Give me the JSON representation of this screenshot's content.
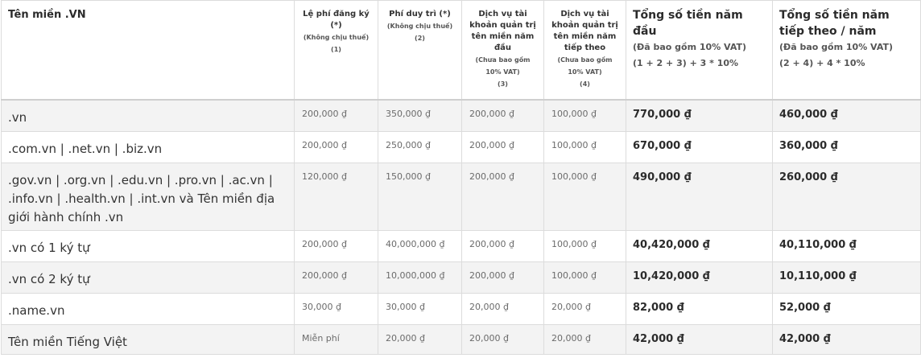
{
  "header": {
    "col_domain": "Tên miền .VN",
    "col_reg_fee": {
      "main": "Lệ phí đăng ký (*)",
      "sub1": "(Không chịu thuế)",
      "sub2": "(1)"
    },
    "col_maint_fee": {
      "main": "Phí duy trì (*)",
      "sub1": "(Không chịu thuế)",
      "sub2": "(2)"
    },
    "col_admin_first": {
      "main": "Dịch vụ tài khoản quản trị tên miền năm đầu",
      "sub1": "(Chưa bao gồm 10% VAT)",
      "sub2": "(3)"
    },
    "col_admin_next": {
      "main": "Dịch vụ tài khoản quản trị tên miền năm tiếp theo",
      "sub1": "(Chưa bao gồm 10% VAT)",
      "sub2": "(4)"
    },
    "col_total_first": {
      "main": "Tổng số tiền năm đầu",
      "sub1": "(Đã bao gồm 10% VAT)",
      "sub2": "(1 + 2 + 3) + 3 * 10%"
    },
    "col_total_next": {
      "main": "Tổng số tiền năm tiếp theo / năm",
      "sub1": "(Đã bao gồm 10% VAT)",
      "sub2": "(2 + 4) + 4 * 10%"
    }
  },
  "rows": [
    {
      "name": ".vn",
      "reg": "200,000 ₫",
      "maint": "350,000 ₫",
      "admin_first": "200,000 ₫",
      "admin_next": "100,000 ₫",
      "total_first": "770,000 ₫",
      "total_next": "460,000 ₫"
    },
    {
      "name": ".com.vn | .net.vn | .biz.vn",
      "reg": "200,000 ₫",
      "maint": "250,000 ₫",
      "admin_first": "200,000 ₫",
      "admin_next": "100,000 ₫",
      "total_first": "670,000 ₫",
      "total_next": "360,000 ₫"
    },
    {
      "name": ".gov.vn | .org.vn | .edu.vn | .pro.vn | .ac.vn | .info.vn | .health.vn | .int.vn và Tên miền địa giới hành chính .vn",
      "reg": "120,000 ₫",
      "maint": "150,000 ₫",
      "admin_first": "200,000 ₫",
      "admin_next": "100,000 ₫",
      "total_first": "490,000 ₫",
      "total_next": "260,000 ₫"
    },
    {
      "name": ".vn có 1 ký tự",
      "reg": "200,000 ₫",
      "maint": "40,000,000 ₫",
      "admin_first": "200,000 ₫",
      "admin_next": "100,000 ₫",
      "total_first": "40,420,000 ₫",
      "total_next": "40,110,000 ₫"
    },
    {
      "name": ".vn có 2 ký tự",
      "reg": "200,000 ₫",
      "maint": "10,000,000 ₫",
      "admin_first": "200,000 ₫",
      "admin_next": "100,000 ₫",
      "total_first": "10,420,000 ₫",
      "total_next": "10,110,000 ₫"
    },
    {
      "name": ".name.vn",
      "reg": "30,000 ₫",
      "maint": "30,000 ₫",
      "admin_first": "20,000 ₫",
      "admin_next": "20,000 ₫",
      "total_first": "82,000 ₫",
      "total_next": "52,000 ₫"
    },
    {
      "name": "Tên miền Tiếng Việt",
      "reg": "Miễn phí",
      "maint": "20,000 ₫",
      "admin_first": "20,000 ₫",
      "admin_next": "20,000 ₫",
      "total_first": "42,000 ₫",
      "total_next": "42,000 ₫"
    }
  ]
}
